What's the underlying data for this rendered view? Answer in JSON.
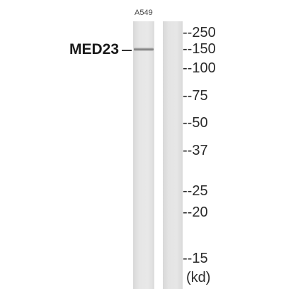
{
  "lane_label": "A549",
  "protein_label": "MED23",
  "band_marker": "—",
  "markers": [
    "--250",
    "--150",
    "--100",
    "--75",
    "--50",
    "--37",
    "--25",
    "--20",
    "--15"
  ],
  "unit": "(kd)"
}
